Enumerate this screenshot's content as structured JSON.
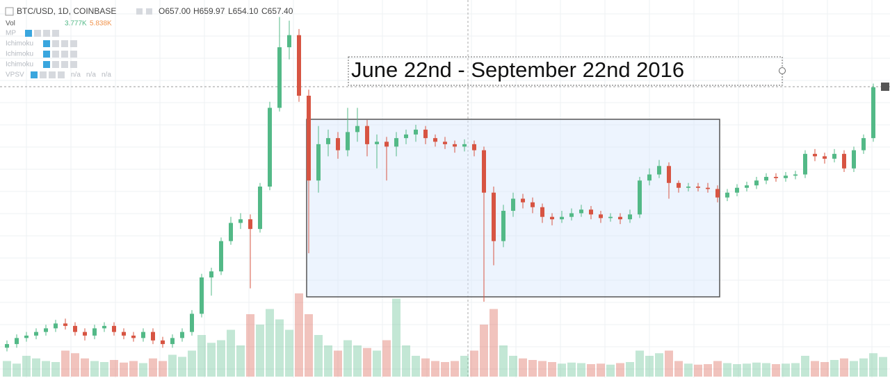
{
  "header": {
    "symbol": "BTC/USD, 1D, COINBASE",
    "ohlc": [
      "O657.00",
      "H659.97",
      "L654.10",
      "C657.40"
    ],
    "volume_label": "Vol",
    "volume_values": [
      "3.777K",
      "5.838K"
    ],
    "indicators": [
      "MP",
      "Ichimoku",
      "Ichimoku",
      "Ichimoku",
      "VPSV"
    ],
    "vpsv_values": [
      "n/a",
      "n/a",
      "n/a"
    ]
  },
  "chart_data": {
    "type": "candlestick",
    "annotation": "June 22nd - September 22nd 2016",
    "up_color": "#53b987",
    "down_color": "#d75442",
    "ylim": [
      417,
      729
    ],
    "vlim": [
      0,
      20000
    ],
    "candles": [
      [
        442,
        448,
        439,
        445
      ],
      [
        445,
        453,
        442,
        450
      ],
      [
        450,
        455,
        447,
        452
      ],
      [
        452,
        458,
        449,
        455
      ],
      [
        455,
        461,
        452,
        458
      ],
      [
        458,
        465,
        455,
        462
      ],
      [
        462,
        466,
        457,
        460
      ],
      [
        460,
        463,
        452,
        455
      ],
      [
        455,
        458,
        448,
        452
      ],
      [
        452,
        461,
        449,
        458
      ],
      [
        458,
        463,
        455,
        460
      ],
      [
        460,
        463,
        452,
        455
      ],
      [
        455,
        458,
        449,
        452
      ],
      [
        452,
        455,
        447,
        450
      ],
      [
        450,
        458,
        447,
        455
      ],
      [
        455,
        458,
        445,
        448
      ],
      [
        448,
        451,
        442,
        445
      ],
      [
        445,
        453,
        442,
        450
      ],
      [
        450,
        458,
        447,
        455
      ],
      [
        455,
        473,
        452,
        470
      ],
      [
        470,
        503,
        467,
        500
      ],
      [
        500,
        508,
        485,
        505
      ],
      [
        505,
        533,
        502,
        530
      ],
      [
        530,
        550,
        527,
        545
      ],
      [
        545,
        553,
        540,
        548
      ],
      [
        548,
        552,
        491,
        540
      ],
      [
        540,
        578,
        537,
        575
      ],
      [
        575,
        645,
        572,
        640
      ],
      [
        640,
        715,
        637,
        690
      ],
      [
        690,
        712,
        680,
        700
      ],
      [
        700,
        705,
        645,
        650
      ],
      [
        650,
        655,
        520,
        580
      ],
      [
        580,
        625,
        570,
        610
      ],
      [
        610,
        622,
        600,
        615
      ],
      [
        615,
        620,
        598,
        605
      ],
      [
        605,
        640,
        600,
        620
      ],
      [
        620,
        640,
        612,
        625
      ],
      [
        625,
        630,
        600,
        610
      ],
      [
        610,
        618,
        590,
        612
      ],
      [
        612,
        616,
        580,
        608
      ],
      [
        608,
        620,
        600,
        615
      ],
      [
        615,
        622,
        610,
        618
      ],
      [
        618,
        626,
        612,
        622
      ],
      [
        622,
        625,
        610,
        615
      ],
      [
        615,
        618,
        608,
        612
      ],
      [
        612,
        616,
        606,
        610
      ],
      [
        610,
        613,
        603,
        608
      ],
      [
        608,
        614,
        604,
        610
      ],
      [
        610,
        613,
        600,
        605
      ],
      [
        605,
        608,
        480,
        570
      ],
      [
        570,
        575,
        510,
        530
      ],
      [
        530,
        560,
        525,
        555
      ],
      [
        555,
        570,
        550,
        565
      ],
      [
        565,
        569,
        557,
        562
      ],
      [
        562,
        566,
        553,
        558
      ],
      [
        558,
        561,
        545,
        550
      ],
      [
        550,
        553,
        543,
        548
      ],
      [
        548,
        555,
        545,
        550
      ],
      [
        550,
        557,
        547,
        553
      ],
      [
        553,
        560,
        550,
        556
      ],
      [
        556,
        559,
        548,
        552
      ],
      [
        552,
        555,
        545,
        549
      ],
      [
        549,
        553,
        546,
        550
      ],
      [
        550,
        553,
        544,
        548
      ],
      [
        548,
        556,
        545,
        552
      ],
      [
        552,
        583,
        549,
        580
      ],
      [
        580,
        590,
        576,
        585
      ],
      [
        585,
        597,
        582,
        592
      ],
      [
        592,
        595,
        565,
        578
      ],
      [
        578,
        580,
        570,
        574
      ],
      [
        574,
        578,
        571,
        575
      ],
      [
        575,
        578,
        571,
        574
      ],
      [
        574,
        578,
        570,
        573
      ],
      [
        573,
        576,
        562,
        566
      ],
      [
        566,
        573,
        563,
        570
      ],
      [
        570,
        577,
        567,
        574
      ],
      [
        574,
        579,
        571,
        576
      ],
      [
        576,
        583,
        573,
        580
      ],
      [
        580,
        586,
        577,
        583
      ],
      [
        583,
        586,
        579,
        582
      ],
      [
        582,
        587,
        579,
        584
      ],
      [
        584,
        588,
        581,
        585
      ],
      [
        585,
        605,
        582,
        602
      ],
      [
        602,
        606,
        596,
        600
      ],
      [
        600,
        603,
        594,
        598
      ],
      [
        598,
        606,
        595,
        602
      ],
      [
        602,
        605,
        587,
        590
      ],
      [
        590,
        608,
        587,
        605
      ],
      [
        605,
        618,
        602,
        615
      ],
      [
        615,
        660,
        612,
        657
      ],
      [
        657,
        659.97,
        654.1,
        657.4
      ]
    ],
    "volume": [
      3000,
      2500,
      4000,
      3500,
      3000,
      2800,
      5000,
      4500,
      3500,
      3000,
      2800,
      3200,
      2700,
      3000,
      2600,
      3500,
      3000,
      4200,
      3800,
      5000,
      8000,
      6500,
      7000,
      9000,
      6000,
      12000,
      10000,
      13000,
      11000,
      9000,
      16000,
      12000,
      8000,
      6000,
      5000,
      7000,
      6000,
      5500,
      5000,
      7000,
      15000,
      6000,
      4000,
      3500,
      3000,
      2800,
      3000,
      4000,
      5000,
      10000,
      13000,
      6000,
      4000,
      3500,
      3200,
      3000,
      2800,
      2500,
      2700,
      2600,
      2400,
      2500,
      2300,
      2600,
      2800,
      5000,
      4000,
      4500,
      5000,
      3000,
      2500,
      2300,
      2400,
      3000,
      2600,
      2400,
      2500,
      2700,
      2600,
      2400,
      2500,
      2600,
      4000,
      3000,
      2800,
      3200,
      3500,
      3000,
      3500,
      4500,
      3777
    ]
  }
}
